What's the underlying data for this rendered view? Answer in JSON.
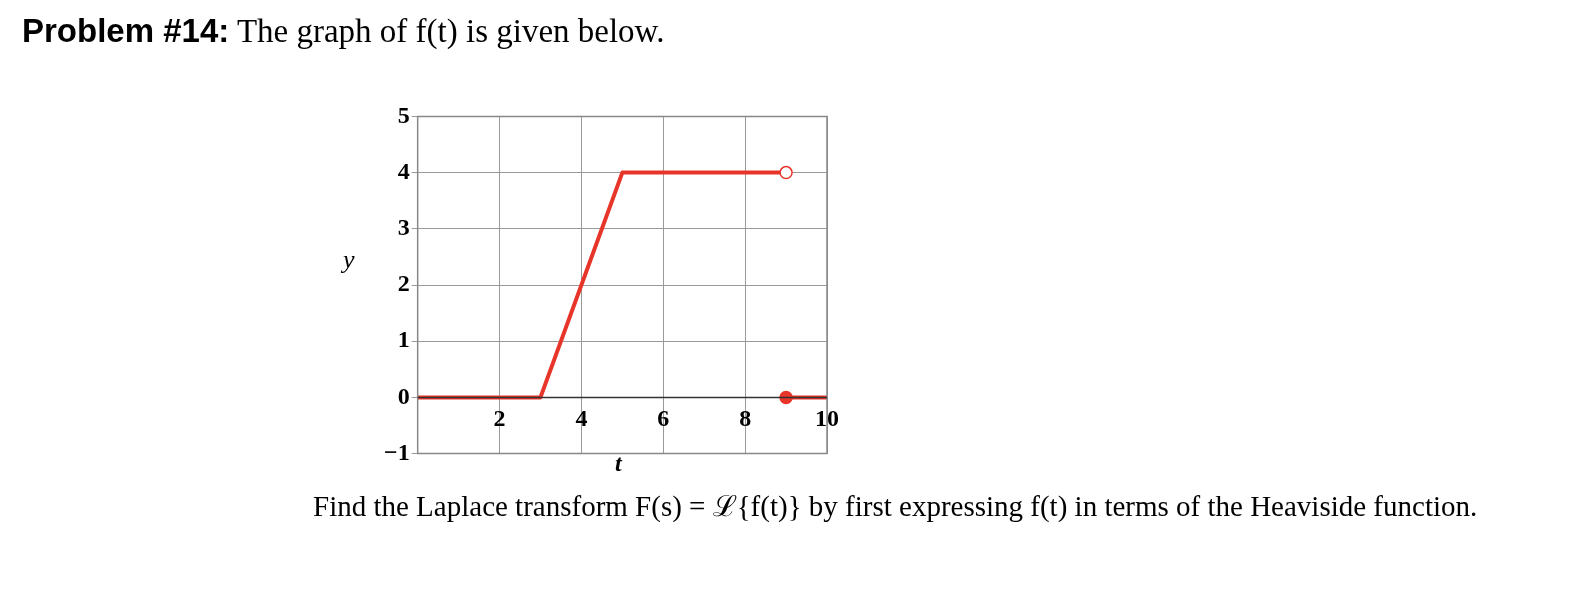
{
  "chart_data": {
    "type": "line",
    "title": "Problem #14: The graph of f(t) is given below.",
    "xlabel": "t",
    "ylabel": "y",
    "annotations": [
      "Find the Laplace transform F(s) = ℒ{f(t)} by first expressing f(t) in terms of the Heaviside function."
    ],
    "series": [
      {
        "color": "#e8352a",
        "x": [
          0,
          3,
          5,
          9
        ],
        "values": [
          0,
          0,
          4,
          4
        ],
        "marker": "none"
      },
      {
        "color": "#e8352a",
        "x": [
          9,
          10
        ],
        "values": [
          0,
          0
        ],
        "marker": "none"
      },
      {
        "type": "scatter",
        "color": "#e8352a",
        "x": [
          9
        ],
        "values": [
          4
        ],
        "marker": "circle"
      },
      {
        "type": "scatter",
        "color": "#e8352a",
        "x": [
          9
        ],
        "values": [
          0
        ],
        "marker": "circle"
      }
    ],
    "xlim": [
      0,
      10
    ],
    "xticks": [
      2,
      4,
      6,
      8,
      10
    ],
    "ylim": [
      -1,
      5
    ],
    "yticks": [
      -1,
      0,
      1,
      2,
      3,
      4,
      5
    ],
    "grid": true,
    "legend": false
  }
}
